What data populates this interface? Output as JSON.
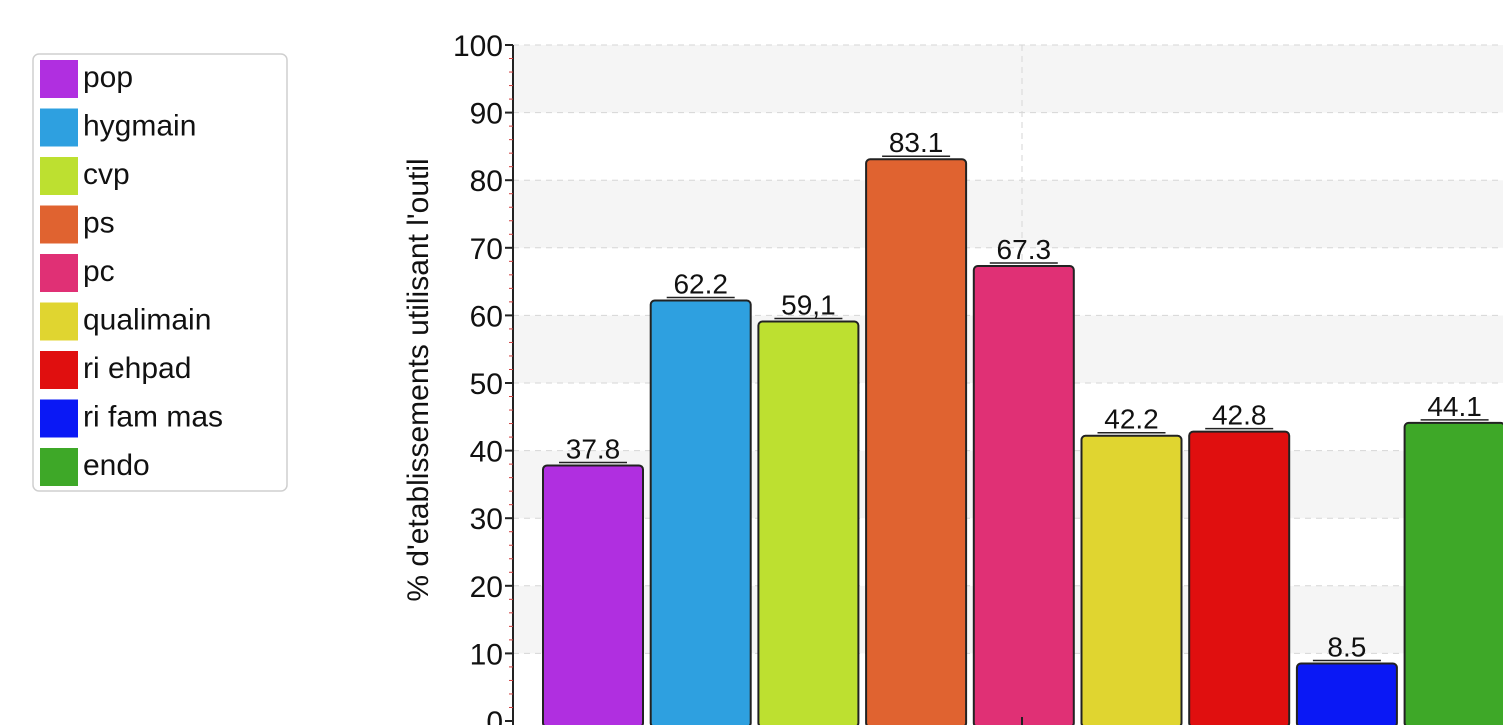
{
  "chart_data": {
    "type": "bar",
    "title": "",
    "xlabel": "",
    "ylabel": "% d'etablissements utilisant l'outil",
    "ylim": [
      0,
      100
    ],
    "yticks": [
      "0",
      "10",
      "20",
      "30",
      "40",
      "50",
      "60",
      "70",
      "80",
      "90",
      "100"
    ],
    "grid": true,
    "legend_position": "left",
    "series": [
      {
        "name": "pop",
        "value": 37.8,
        "label": "37.8",
        "color": "#b02fe0"
      },
      {
        "name": "hygmain",
        "value": 62.2,
        "label": "62.2",
        "color": "#2ea0e0"
      },
      {
        "name": "cvp",
        "value": 59.1,
        "label": "59,1",
        "color": "#bde030"
      },
      {
        "name": "ps",
        "value": 83.1,
        "label": "83.1",
        "color": "#e06330"
      },
      {
        "name": "pc",
        "value": 67.3,
        "label": "67.3",
        "color": "#e03075"
      },
      {
        "name": "qualimain",
        "value": 42.2,
        "label": "42.2",
        "color": "#e0d530"
      },
      {
        "name": "ri ehpad",
        "value": 42.8,
        "label": "42.8",
        "color": "#e00f0f"
      },
      {
        "name": "ri fam mas",
        "value": 8.5,
        "label": "8.5",
        "color": "#0a18f5"
      },
      {
        "name": "endo",
        "value": 44.1,
        "label": "44.1",
        "color": "#3ea828"
      }
    ]
  },
  "legend": {
    "items": [
      {
        "label": "pop",
        "color": "#b02fe0"
      },
      {
        "label": "hygmain",
        "color": "#2ea0e0"
      },
      {
        "label": "cvp",
        "color": "#bde030"
      },
      {
        "label": "ps",
        "color": "#e06330"
      },
      {
        "label": "pc",
        "color": "#e03075"
      },
      {
        "label": "qualimain",
        "color": "#e0d530"
      },
      {
        "label": "ri ehpad",
        "color": "#e00f0f"
      },
      {
        "label": "ri fam mas",
        "color": "#0a18f5"
      },
      {
        "label": "endo",
        "color": "#3ea828"
      }
    ]
  }
}
